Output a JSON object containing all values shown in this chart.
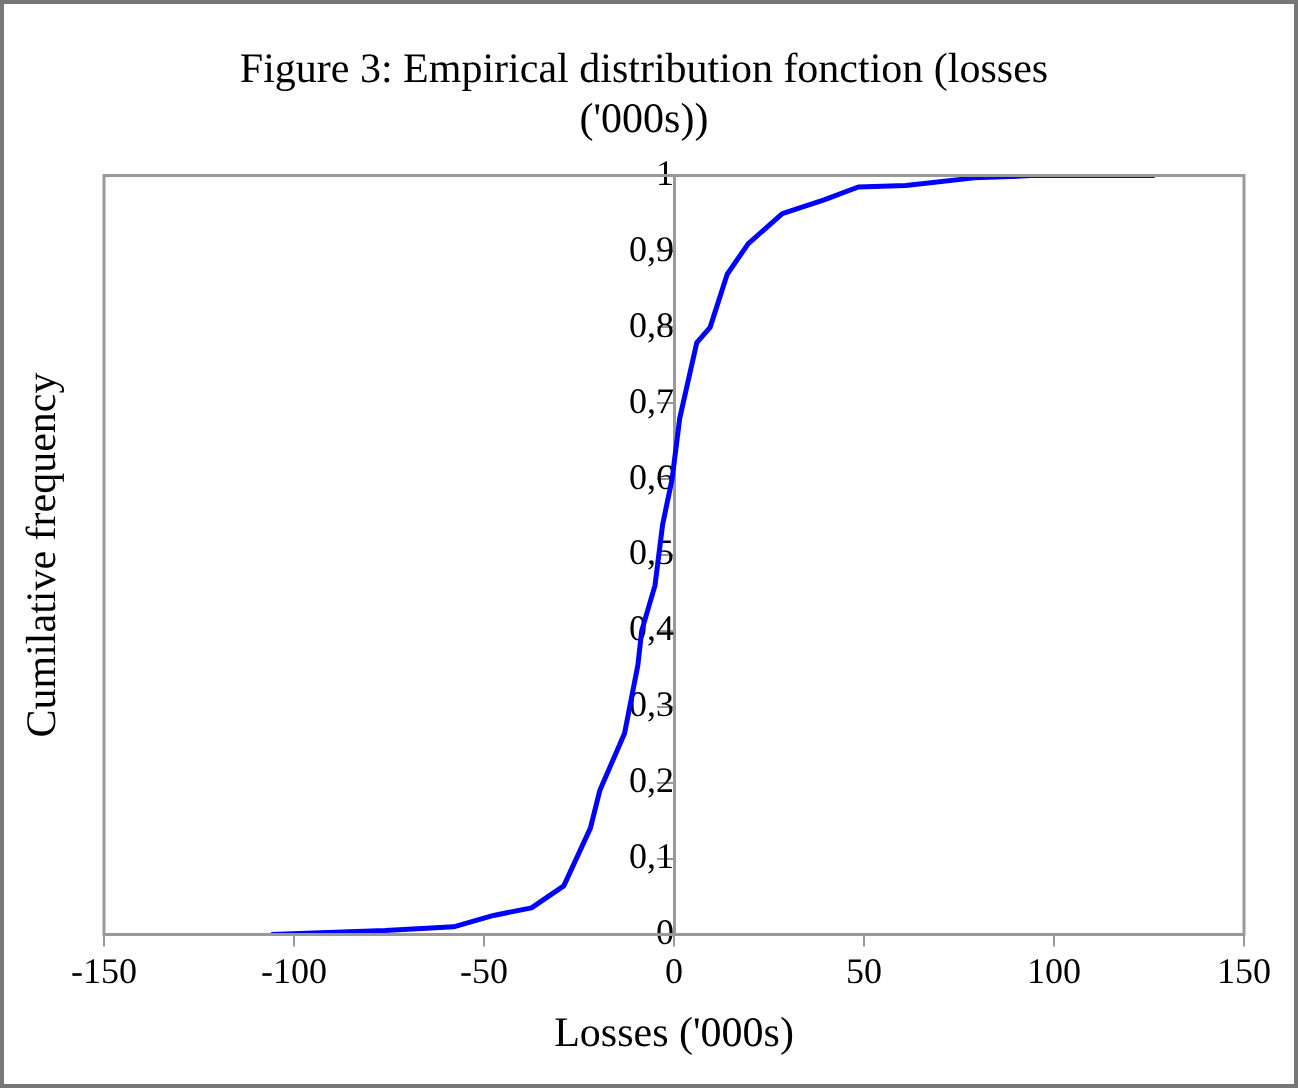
{
  "chart_data": {
    "type": "line",
    "title": "Figure 3: Empirical distribution fonction (losses ('000s))",
    "xlabel": "Losses ('000s)",
    "ylabel": "Cumilative frequency",
    "x": [
      -106,
      -76,
      -58,
      -47.5,
      -37.5,
      -29,
      -22,
      -19.5,
      -13,
      -9.5,
      -8.5,
      -5,
      -3,
      -0.5,
      1.5,
      6,
      9.5,
      14,
      19.5,
      28.5,
      39.5,
      48.5,
      61,
      79,
      94,
      126.5
    ],
    "series": [
      {
        "color": "#0000ff",
        "values": [
          0,
          0.005,
          0.01,
          0.025,
          0.035,
          0.064,
          0.14,
          0.19,
          0.265,
          0.355,
          0.4,
          0.46,
          0.54,
          0.6,
          0.68,
          0.78,
          0.8,
          0.87,
          0.91,
          0.95,
          0.968,
          0.985,
          0.987,
          0.997,
          1,
          1
        ]
      }
    ],
    "xlim": [
      -150,
      150
    ],
    "xticks": [
      -150,
      -100,
      -50,
      0,
      50,
      100,
      150
    ],
    "ylim": [
      0,
      1
    ],
    "yticks": [
      0,
      {
        "value": 0.1,
        "label": "0,1"
      },
      {
        "value": 0.2,
        "label": "0,2"
      },
      {
        "value": 0.3,
        "label": "0,3"
      },
      {
        "value": 0.4,
        "label": "0,4"
      },
      {
        "value": 0.5,
        "label": "0,5"
      },
      {
        "value": 0.6,
        "label": "0,6"
      },
      {
        "value": 0.7,
        "label": "0,7"
      },
      {
        "value": 0.8,
        "label": "0,8"
      },
      {
        "value": 0.9,
        "label": "0,9"
      },
      1
    ],
    "grid": false,
    "legend": false,
    "marker": "none",
    "line_style": "solid"
  }
}
